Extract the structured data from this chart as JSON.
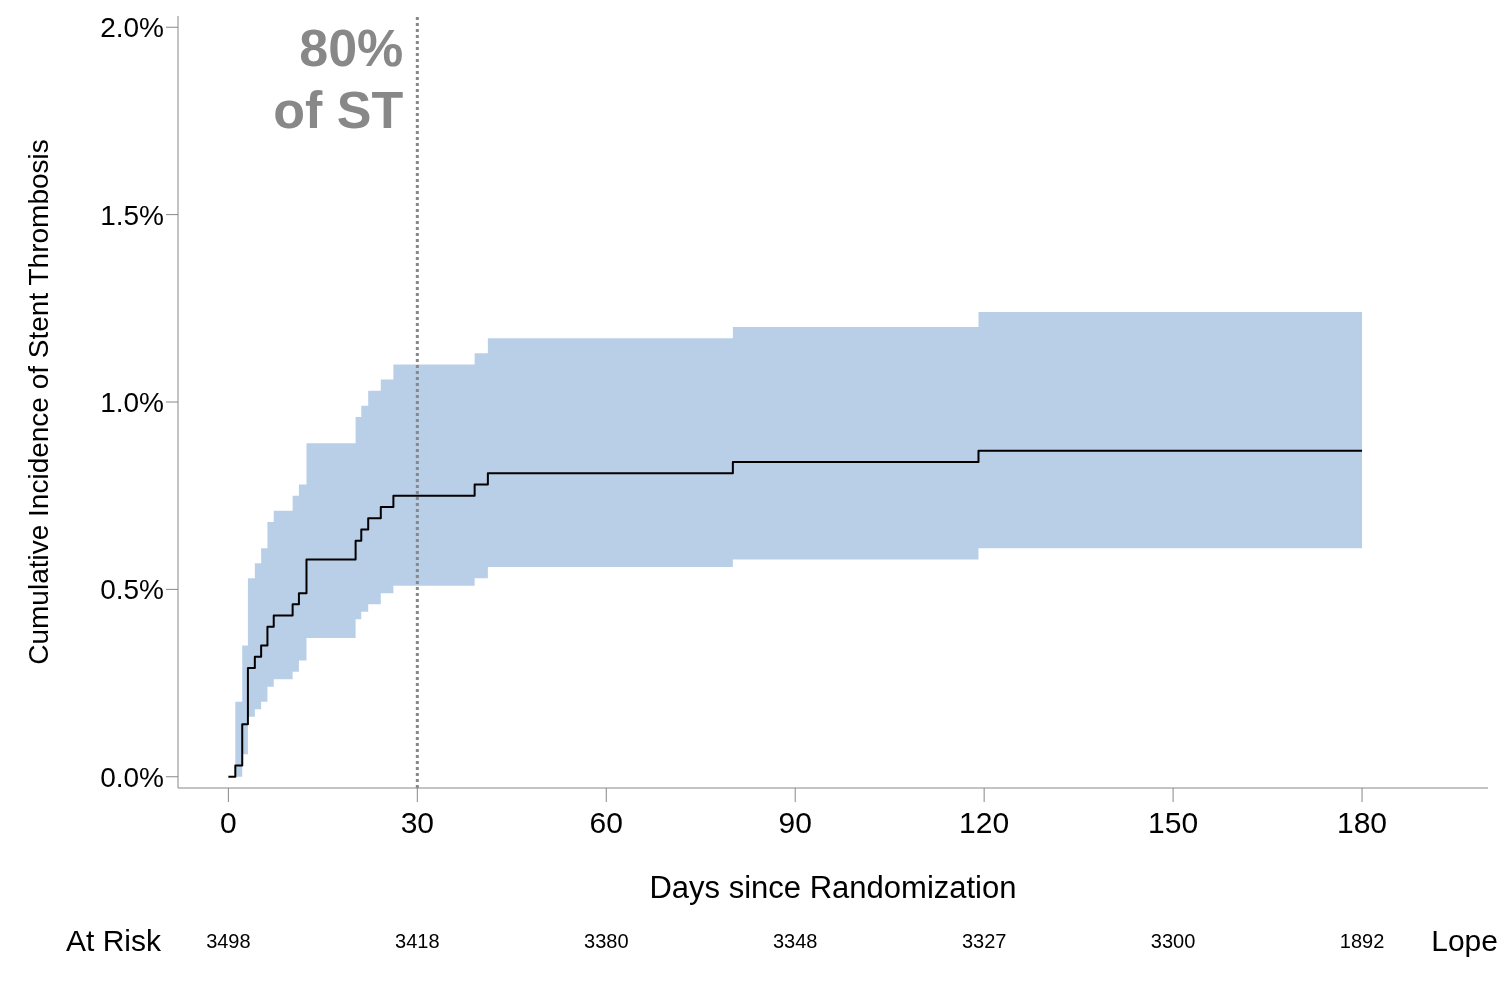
{
  "chart_data": {
    "type": "step",
    "xlabel": "Days since Randomization",
    "ylabel": "Cumulative Incidence of Stent Thrombosis",
    "x": [
      0,
      1.1,
      2.2,
      3.1,
      4.2,
      5.2,
      6.2,
      7.2,
      10.2,
      11.2,
      12.4,
      20.2,
      21.1,
      22.2,
      24.2,
      26.2,
      39.1,
      41.2,
      80.1,
      119.1,
      180
    ],
    "series": [
      {
        "color": "#000000",
        "values": [
          0,
          0.03,
          0.14,
          0.29,
          0.32,
          0.35,
          0.4,
          0.43,
          0.46,
          0.49,
          0.58,
          0.63,
          0.66,
          0.69,
          0.72,
          0.75,
          0.78,
          0.81,
          0.84,
          0.87,
          0.87
        ],
        "lower": [
          null,
          0.0,
          0.06,
          0.16,
          0.18,
          0.2,
          0.24,
          0.26,
          0.28,
          0.31,
          0.37,
          0.42,
          0.44,
          0.46,
          0.49,
          0.51,
          0.53,
          0.56,
          0.58,
          0.61,
          0.61
        ],
        "upper": [
          null,
          0.2,
          0.35,
          0.53,
          0.57,
          0.61,
          0.68,
          0.71,
          0.75,
          0.78,
          0.89,
          0.96,
          0.99,
          1.03,
          1.06,
          1.1,
          1.13,
          1.17,
          1.2,
          1.24,
          1.24
        ]
      }
    ],
    "xlim": [
      -8,
      200
    ],
    "xticks": [
      0,
      30,
      60,
      90,
      120,
      150,
      180
    ],
    "ylim": [
      -0.03,
      2.03
    ],
    "yticks": [
      {
        "value": 0,
        "label": "0.0%"
      },
      {
        "value": 0.5,
        "label": "0.5%"
      },
      {
        "value": 1.0,
        "label": "1.0%"
      },
      {
        "value": 1.5,
        "label": "1.5%"
      },
      {
        "value": 2.0,
        "label": "2.0%"
      }
    ],
    "ref_lines": [
      {
        "axis": "x",
        "value": 30,
        "label": "80% of ST",
        "color": "#888888",
        "line_style": "dotted"
      }
    ],
    "annotations": [
      "At Risk",
      "3498",
      "3418",
      "3380",
      "3348",
      "3327",
      "3300",
      "1892",
      "Lope"
    ],
    "marker": "none",
    "line_style": "solid"
  }
}
